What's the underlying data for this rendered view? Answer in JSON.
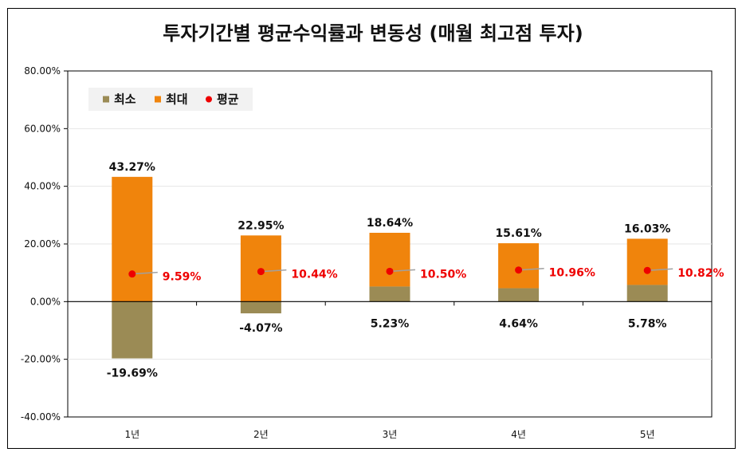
{
  "chart_data": {
    "type": "bar",
    "title": "투자기간별 평균수익률과 변동성 (매월 최고점 투자)",
    "categories": [
      "1년",
      "2년",
      "3년",
      "4년",
      "5년"
    ],
    "ylim": [
      -40,
      80
    ],
    "yticks": [
      -40,
      -20,
      0,
      20,
      40,
      60,
      80
    ],
    "ytick_format": "0.00%",
    "grid": true,
    "legend_position": "top-left",
    "series": [
      {
        "name": "최소",
        "values": [
          -19.69,
          -4.07,
          5.23,
          4.64,
          5.78
        ],
        "labels": [
          "-19.69%",
          "-4.07%",
          "5.23%",
          "4.64%",
          "5.78%"
        ],
        "color": "#9b8b55"
      },
      {
        "name": "최대",
        "values": [
          43.27,
          22.95,
          23.87,
          20.25,
          21.81
        ],
        "labels": [
          "43.27%",
          "22.95%",
          "18.64%",
          "15.61%",
          "16.03%"
        ],
        "color": "#f0840c"
      },
      {
        "name": "평균",
        "values": [
          9.59,
          10.44,
          10.5,
          10.96,
          10.82
        ],
        "labels": [
          "9.59%",
          "10.44%",
          "10.50%",
          "10.96%",
          "10.82%"
        ],
        "color": "#ee0000"
      }
    ]
  }
}
